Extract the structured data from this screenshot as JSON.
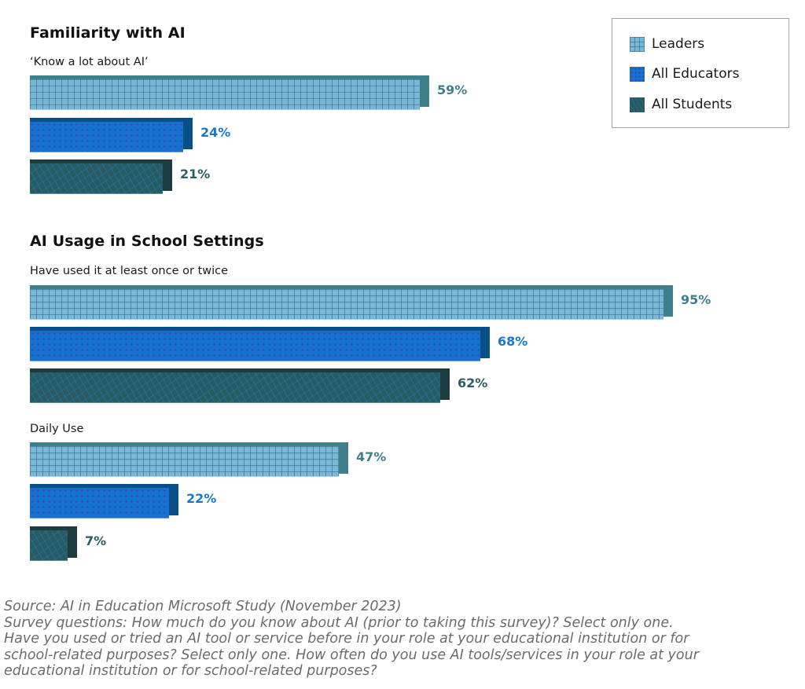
{
  "chart_data": [
    {
      "type": "bar",
      "orientation": "horizontal",
      "title": "Familiarity with AI",
      "categories": [
        "'Know a lot about AI'"
      ],
      "series": [
        {
          "name": "Leaders",
          "values": [
            59
          ]
        },
        {
          "name": "All Educators",
          "values": [
            24
          ]
        },
        {
          "name": "All Students",
          "values": [
            21
          ]
        }
      ],
      "value_labels": [
        [
          "59%"
        ],
        [
          "24%"
        ],
        [
          "21%"
        ]
      ],
      "xlabel": "",
      "ylabel": "",
      "xlim": [
        0,
        100
      ],
      "grid": false,
      "legend_position": "top-right",
      "unit": "%"
    },
    {
      "type": "bar",
      "orientation": "horizontal",
      "title": "AI Usage in School Settings",
      "categories": [
        "Have used it at least once or twice",
        "Daily Use"
      ],
      "series": [
        {
          "name": "Leaders",
          "values": [
            95,
            47
          ]
        },
        {
          "name": "All Educators",
          "values": [
            68,
            22
          ]
        },
        {
          "name": "All Students",
          "values": [
            62,
            7
          ]
        }
      ],
      "value_labels": [
        [
          "95%",
          "47%"
        ],
        [
          "68%",
          "22%"
        ],
        [
          "62%",
          "7%"
        ]
      ],
      "xlabel": "",
      "ylabel": "",
      "xlim": [
        0,
        100
      ],
      "grid": false,
      "legend_position": "top-right",
      "unit": "%"
    }
  ],
  "legend": {
    "items": [
      {
        "label": "Leaders",
        "color": "#7ab6d6",
        "pattern": "grid"
      },
      {
        "label": "All Educators",
        "color": "#1572d0",
        "pattern": "dots"
      },
      {
        "label": "All Students",
        "color": "#275b64",
        "pattern": "speckle"
      }
    ]
  },
  "sections": {
    "familiarity": {
      "title": "Familiarity with AI",
      "groups": [
        {
          "label": "‘Know a lot about AI’",
          "bars": [
            {
              "series": "Leaders",
              "value": 59,
              "label": "59%"
            },
            {
              "series": "All Educators",
              "value": 24,
              "label": "24%"
            },
            {
              "series": "All Students",
              "value": 21,
              "label": "21%"
            }
          ]
        }
      ]
    },
    "usage": {
      "title": "AI Usage in School Settings",
      "groups": [
        {
          "label": "Have used it at least once or twice",
          "bars": [
            {
              "series": "Leaders",
              "value": 95,
              "label": "95%"
            },
            {
              "series": "All Educators",
              "value": 68,
              "label": "68%"
            },
            {
              "series": "All Students",
              "value": 62,
              "label": "62%"
            }
          ]
        },
        {
          "label": "Daily Use",
          "bars": [
            {
              "series": "Leaders",
              "value": 47,
              "label": "47%"
            },
            {
              "series": "All Educators",
              "value": 22,
              "label": "22%"
            },
            {
              "series": "All Students",
              "value": 7,
              "label": "7%"
            }
          ]
        }
      ]
    }
  },
  "colors": {
    "leaders_front": "#7ab6d6",
    "leaders_shadow": "#3f7f8a",
    "educators_front": "#1572d0",
    "educators_shadow": "#074f86",
    "students_front": "#275b64",
    "students_shadow": "#1c3c40"
  },
  "footnote": {
    "lines": [
      "Source: AI in Education Microsoft Study (November 2023)",
      "Survey questions: How much do you know about AI (prior to taking this survey)? Select only one.",
      "Have you used or tried an AI tool or service before in your role at your educational institution or for",
      "school-related purposes? Select only one. How often do you use AI tools/services in your role at your",
      "educational institution or for school-related purposes?"
    ]
  }
}
